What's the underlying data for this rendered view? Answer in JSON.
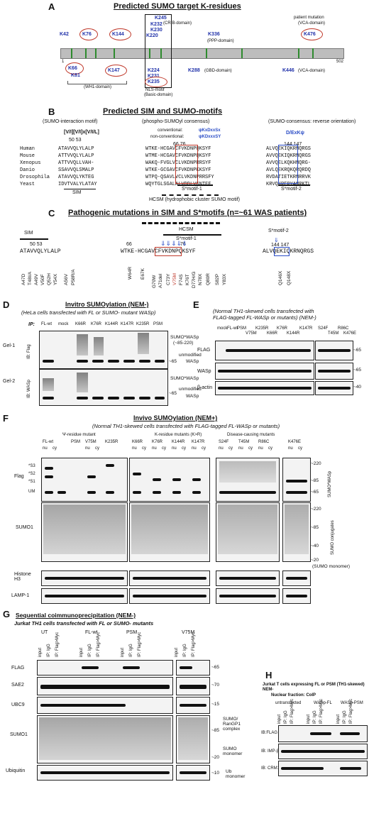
{
  "panelA": {
    "label": "A",
    "title": "Predicted SUMO target K-residues",
    "residues_top": [
      "K42",
      "K76",
      "K144",
      "K245",
      "K232",
      "K230",
      "K220",
      "K336",
      "K476"
    ],
    "residues_bottom": [
      "K66",
      "K81",
      "K147",
      "K224",
      "K231",
      "K235",
      "K288",
      "K446"
    ],
    "domains": [
      "(CRIB-domain)",
      "(PPP-domain)",
      "patient mutation",
      "(VCA-domain)",
      "(WH1-domain)",
      "NLS-motif",
      "(Basic-domain)",
      "(GBD-domain)",
      "(VCA-domain)"
    ],
    "start": "1",
    "end": "502"
  },
  "panelB": {
    "label": "B",
    "title": "Predicted SIM and SUMO-motifs",
    "col1": "(SUMO-interaction motif)",
    "col2": "(phospho-SUMOyl consensus)",
    "col3": "(SUMO-consensus: reverse orientation)",
    "sim_consensus": "[V/I][V/I]x[V/I/L]",
    "conventional": "conventional:",
    "conv_motif": "ψKxDxxSx",
    "nonconventional": "non-conventional:",
    "nonconv_motif": "ψKDxxxSY",
    "rev_motif": "D/ExKψ",
    "nums1": "50  53",
    "nums2": "66           76",
    "nums3": "144 147",
    "species": [
      "Human",
      "Mouse",
      "Xenopus",
      "Danio",
      "Drosophila",
      "Yeast"
    ],
    "seq1": [
      "ATAVVQLYLALP",
      "ATTVVQLYLALP",
      "ATTVVQLLVAH-",
      "SSAVVQLSMALP",
      "ATAVVQLYKTEG",
      "IDVTVALYLATAY"
    ],
    "seq2": [
      "WTKE-HCGAVCFVKDNPQKSYF",
      "WTME-HCGAVCFVKDNPQKSYF",
      "WAKQ-FVGLVCLVKDNPRRSYF",
      "WTKE-GCGAVCFVKDNPKKSYF",
      "WTPQ-QSAVLVCLVKDNPRRSFY",
      "WQYTGLSGALALVDDLVGNTFF"
    ],
    "seq3": [
      "ALVQEKIQKRNQRGS",
      "AVVQEKIQKRNQRGS",
      "AVVQELKQKHNQRG-",
      "AVLQEKRQKQRQRDQ",
      "RVDATIETKRNRRVK",
      "KRVQKRERYANRKTL"
    ],
    "sim_label": "SIM",
    "smotif1": "S*motif-1",
    "smotif2": "S*motif-2",
    "hcsm": "HCSM (hydrophobic cluster SUMO motif)"
  },
  "panelC": {
    "label": "C",
    "title": "Pathogenic mutations in SIM and S*motifs",
    "title_n": "(n=~61 WAS patients)",
    "sim": "SIM",
    "hcsm": "HCSM",
    "smotif1": "S*motif-1",
    "smotif2": "S*motif-2",
    "nums1": "50 53",
    "num66": "66",
    "num76": "76",
    "nums3": "144 147",
    "seq1": "ATAVVQLYLALP",
    "seq2": "WTKE-HCGAVCFVKDNPQKSYF",
    "seq3": "ALVQEKIQKRNQRGS",
    "mut_sim": [
      "A47D",
      "T48I/A",
      "A49V",
      "V50F",
      "Q52H",
      "Y54X",
      "A56V",
      "P58R/A"
    ],
    "mut_s1": [
      "W64R",
      "E67K",
      "G70W",
      "A71del",
      "C73Y",
      "V75M",
      "F74S",
      "K76T",
      "D77H/G",
      "N78X",
      "Q80R",
      "S82P",
      "Y83X"
    ],
    "mut_s2": [
      "Q146X",
      "Q148X"
    ]
  },
  "panelD": {
    "label": "D",
    "title": "Invitro SUMOylation (NEM-)",
    "subtitle": "(HeLa cells transfected with FL or SUMO- mutant WASp)",
    "ip": "IP:",
    "lanes": [
      "FL-wt",
      "mock",
      "K66R",
      "K76R",
      "K144R",
      "K147R",
      "K235R",
      "PSM"
    ],
    "gel1": "Gel-1",
    "gel2": "Gel-2",
    "ib1": "IB: Flag",
    "ib2": "IB: WASp",
    "sumo_wasp": "SUMO*WASp",
    "range": "(~85-220)",
    "unmod": "unmodified",
    "wasp": "WASp",
    "mw65": "~65"
  },
  "panelE": {
    "label": "E",
    "subtitle1": "(Normal TH1-skewed cells transfected with",
    "subtitle2": "FLAG-tagged FL-WASp or mutants) (NEM-)",
    "nem": "(NEM-)",
    "lanes1": [
      "mock",
      "FL-wt",
      "PSM",
      "V75M",
      "K235R",
      "K66R",
      "K76R",
      "K144R",
      "K147R"
    ],
    "lanes2": [
      "S24F",
      "T45M",
      "R86C",
      "K476E"
    ],
    "rows": [
      "FLAG",
      "WASp",
      "β-actin"
    ],
    "mw": [
      "~65",
      "~65",
      "~40"
    ]
  },
  "panelF": {
    "label": "F",
    "title": "Invivo SUMOylation (NEM+)",
    "subtitle": "(Normal TH1-skewed cells transfected with FLAG-tagged FL-WASp or mutants)",
    "group1": "Ψ-residue mutant",
    "group2": "K-residue mutants (K>R)",
    "group3": "Disease-causing mutants",
    "lanes": [
      "FL-wt",
      "PSM",
      "V75M",
      "K235R",
      "K66R",
      "K76R",
      "K144R",
      "K147R",
      "S24F",
      "T45M",
      "R86C",
      "K476E"
    ],
    "fraction": [
      "nu",
      "cy"
    ],
    "left_marks": [
      "*S3",
      "*S2",
      "*S1",
      "UM"
    ],
    "rows": [
      "Flag",
      "SUMO1",
      "Histone H3",
      "LAMP-1"
    ],
    "mw_top": [
      "~220",
      "~85",
      "~65"
    ],
    "mw_sumo": [
      "~220",
      "~85",
      "~40",
      "~20"
    ],
    "sumo_wasp": "SUMO*WASp",
    "sumo_conj": "SUMO conjugates",
    "sumo_mono": "(SUMO monomer)"
  },
  "panelG": {
    "label": "G",
    "title": "Sequential coimmunoprecipitation (NEM-)",
    "subtitle": "Jurkat TH1 cells transfected with FL or SUMO- mutants",
    "groups": [
      "UT",
      "FL-wt",
      "PSM",
      "V75M"
    ],
    "lanes": [
      "input",
      "IP: IgG",
      "IP: Flag>Myc"
    ],
    "rows": [
      "FLAG",
      "SAE2",
      "UBC9",
      "SUMO1",
      "Ubiquitin"
    ],
    "mw": [
      "~65",
      "~70",
      "~15",
      "~85",
      "~20",
      "~10"
    ],
    "sumo_ran": "SUMO/ RanGP1 complex",
    "sumo_mono": "SUMO monomer",
    "ub_mono": "Ub monomer"
  },
  "panelH": {
    "label": "H",
    "title1": "Jurkat T cells expressing FL or PSM (TH1-skewed) NEM-",
    "title2": "Nuclear fraction: CoIP",
    "groups": [
      "untransfected",
      "WASp-FL",
      "WASp-PSM"
    ],
    "lanes": [
      "input",
      "IP: IgG",
      "IP: Flag>Myc"
    ],
    "rows": [
      "IB:FLAG",
      "IB: IMP-β1",
      "IB: CRM1"
    ]
  },
  "colors": {
    "red": "#c0392b",
    "blue": "#2a4cc6",
    "bar": "#b8b8b8"
  }
}
